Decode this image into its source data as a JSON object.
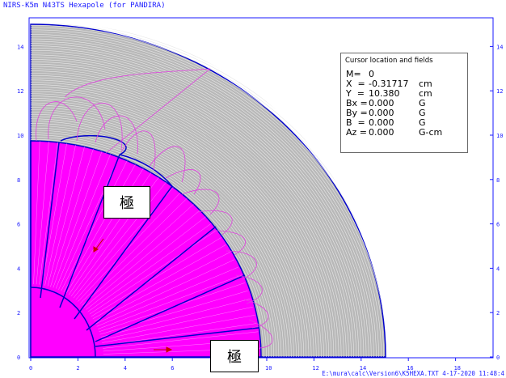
{
  "window": {
    "title": "NIRS-K5m N43TS Hexapole (for PANDIRA)"
  },
  "plot": {
    "x_ticks": [
      "0",
      "2",
      "4",
      "6",
      "8",
      "10",
      "12",
      "14",
      "16",
      "18"
    ],
    "y_ticks_left": [
      "0",
      "2",
      "4",
      "6",
      "8",
      "10",
      "12",
      "14"
    ],
    "y_ticks_right": [
      "0",
      "2",
      "4",
      "6",
      "8",
      "10",
      "12",
      "14"
    ],
    "colors": {
      "axis": "#1a1aff",
      "background_region": "#b8b8b8",
      "magnet": "#ff00ff",
      "field_lines": "#e040e0",
      "boundary": "#0000cc",
      "arrow": "#cc0000"
    }
  },
  "cursor_info": {
    "title": "Cursor location and fields",
    "rows": [
      {
        "label": "M=",
        "value": "0",
        "unit": ""
      },
      {
        "label": "X  =",
        "value": "-0.31717",
        "unit": "cm"
      },
      {
        "label": "Y  =",
        "value": "10.380",
        "unit": "cm"
      },
      {
        "label": "Bx =",
        "value": "0.000",
        "unit": "G"
      },
      {
        "label": "By =",
        "value": "0.000",
        "unit": "G"
      },
      {
        "label": "B  =",
        "value": "0.000",
        "unit": "G"
      },
      {
        "label": "Az =",
        "value": "0.000",
        "unit": "G-cm"
      }
    ]
  },
  "annotations": {
    "pole_label_1": "極",
    "pole_label_2": "極"
  },
  "footer": {
    "path": "E:\\mura\\calc\\Version6\\K5HEXA.TXT",
    "date": "4-17-2020",
    "time": "11:48:4"
  }
}
